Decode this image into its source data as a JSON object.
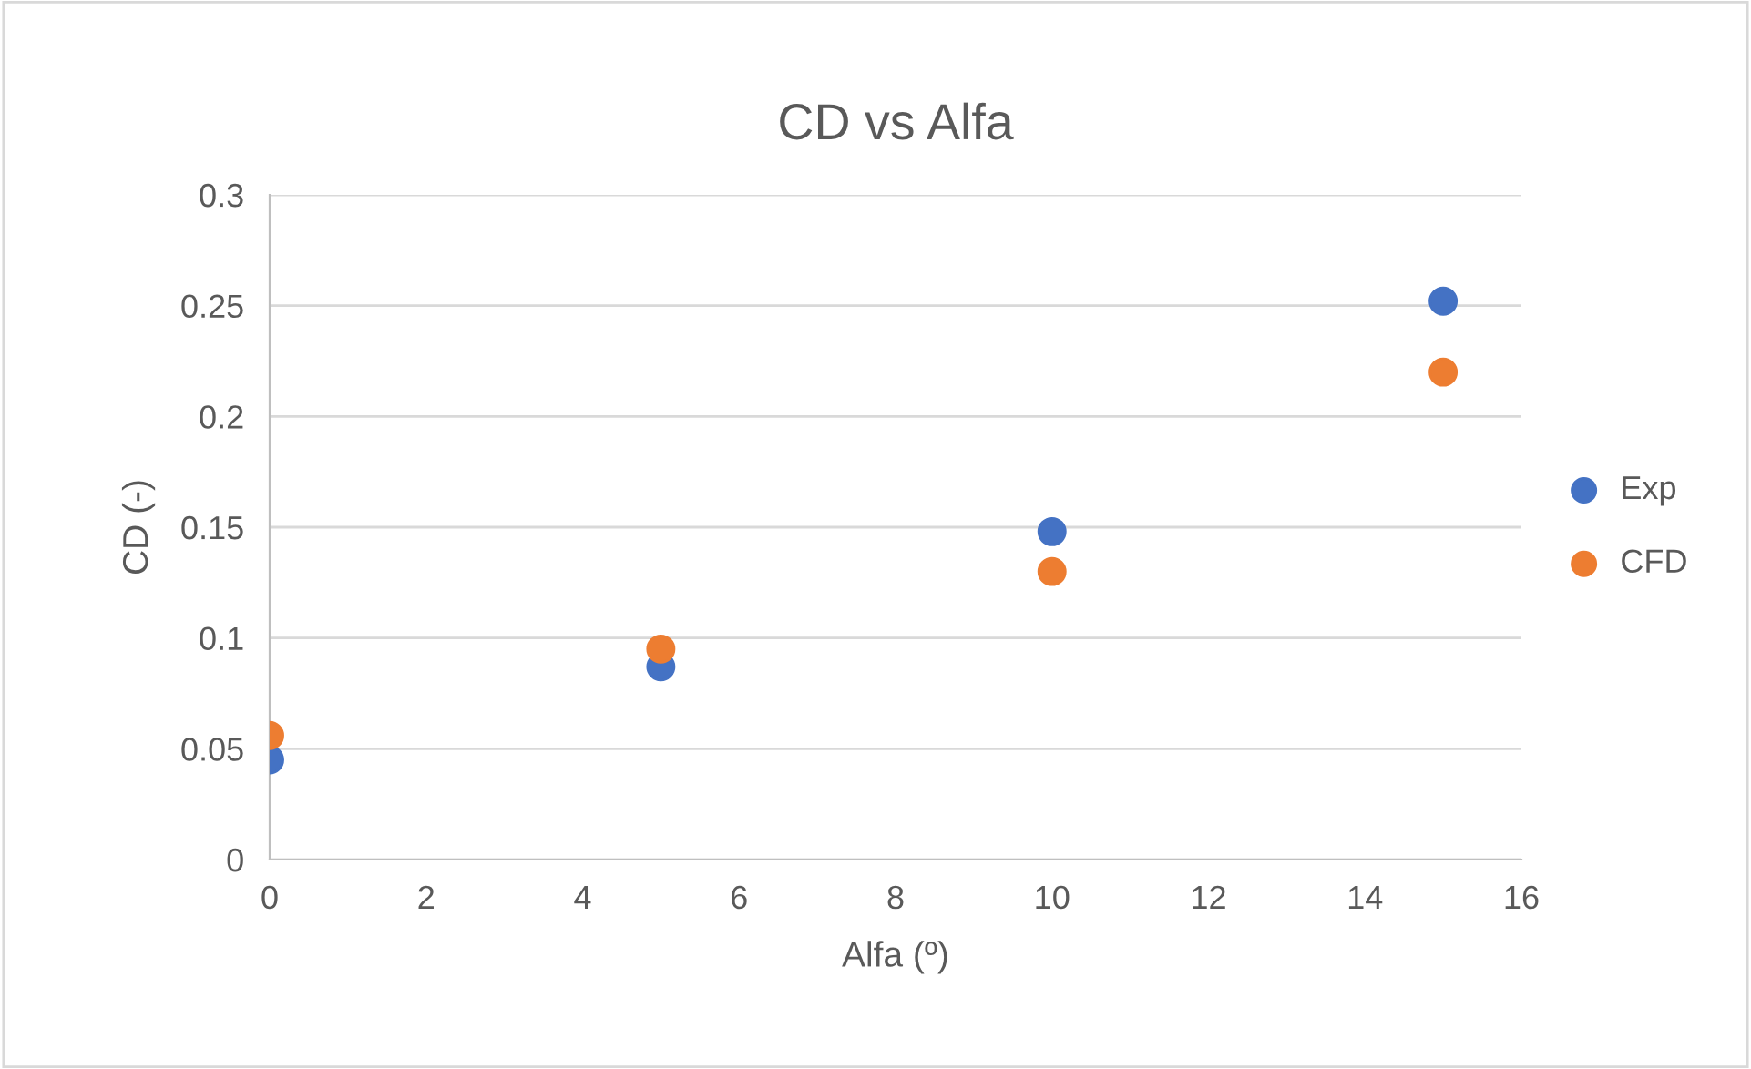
{
  "chart_data": {
    "type": "scatter",
    "title": "CD vs Alfa",
    "xlabel": "Alfa (º)",
    "ylabel": "CD (-)",
    "xlim": [
      0,
      16
    ],
    "xticks": [
      0,
      2,
      4,
      6,
      8,
      10,
      12,
      14,
      16
    ],
    "ylim": [
      0,
      0.3
    ],
    "yticks": [
      0,
      0.05,
      0.1,
      0.15,
      0.2,
      0.25,
      0.3
    ],
    "grid": "y",
    "legend": "right",
    "marker": "circle",
    "series": [
      {
        "name": "Exp",
        "color": "#4472c4",
        "x": [
          0,
          5,
          10,
          15
        ],
        "values": [
          0.045,
          0.087,
          0.148,
          0.252
        ]
      },
      {
        "name": "CFD",
        "color": "#ed7d31",
        "x": [
          0,
          5,
          10,
          15
        ],
        "values": [
          0.056,
          0.095,
          0.13,
          0.22
        ]
      }
    ]
  }
}
